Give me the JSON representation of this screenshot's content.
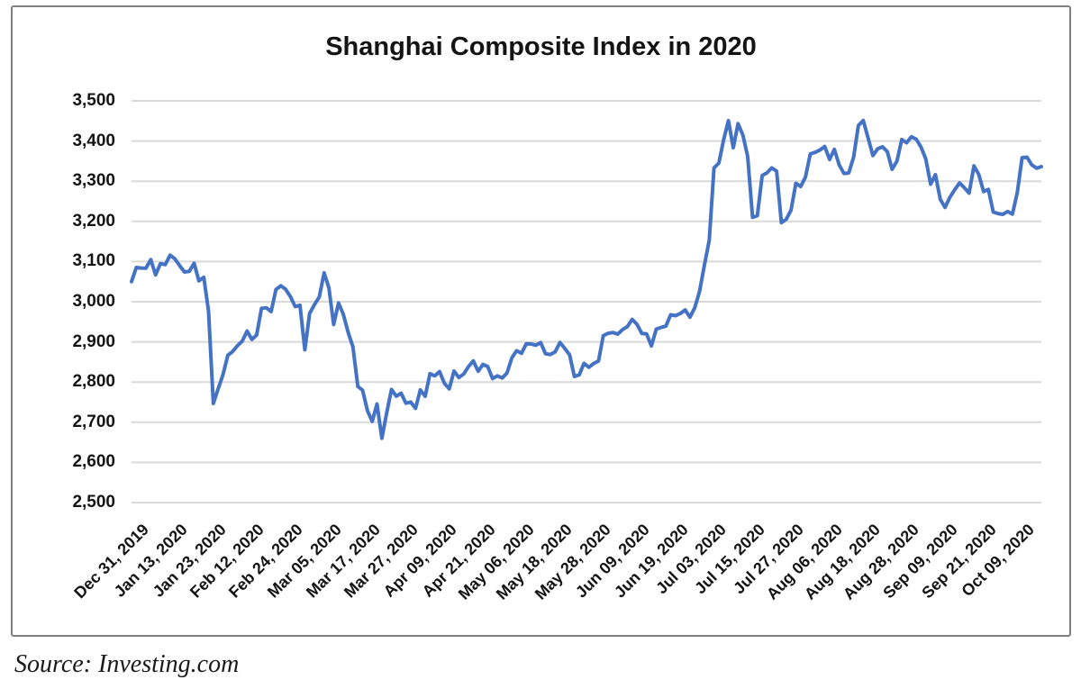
{
  "source_note": "Source: Investing.com",
  "chart_data": {
    "type": "line",
    "title": "Shanghai Composite Index in 2020",
    "xlabel": "",
    "ylabel": "",
    "ylim": [
      2500,
      3500
    ],
    "y_tick_step": 100,
    "y_tick_labels": [
      "3,500",
      "3,400",
      "3,300",
      "3,200",
      "3,100",
      "3,000",
      "2,900",
      "2,800",
      "2,700",
      "2,600",
      "2,500"
    ],
    "y_tick_values": [
      3500,
      3400,
      3300,
      3200,
      3100,
      3000,
      2900,
      2800,
      2700,
      2600,
      2500
    ],
    "x_tick_labels": [
      "Dec 31, 2019",
      "Jan 13, 2020",
      "Jan 23, 2020",
      "Feb 12, 2020",
      "Feb 24, 2020",
      "Mar 05, 2020",
      "Mar 17, 2020",
      "Mar 27, 2020",
      "Apr 09, 2020",
      "Apr 21, 2020",
      "May 06, 2020",
      "May 18, 2020",
      "May 28, 2020",
      "Jun 09, 2020",
      "Jun 19, 2020",
      "Jul 03, 2020",
      "Jul 15, 2020",
      "Jul 27, 2020",
      "Aug 06, 2020",
      "Aug 18, 2020",
      "Aug 28, 2020",
      "Sep 09, 2020",
      "Sep 21, 2020",
      "Oct 09, 2020"
    ],
    "x_tick_every_n_points": 8,
    "grid": "horizontal",
    "gridline_color": "#d9d9d9",
    "legend_position": "none",
    "series": [
      {
        "name": "Shanghai Composite Index",
        "color": "#4472C4",
        "values": [
          3050.1,
          3085.2,
          3083.8,
          3083.4,
          3104.8,
          3066.9,
          3094.9,
          3092.3,
          3115.6,
          3106.8,
          3090.0,
          3074.1,
          3075.5,
          3095.8,
          3052.1,
          3060.8,
          2976.5,
          2746.6,
          2783.3,
          2818.1,
          2866.5,
          2875.9,
          2890.5,
          2901.7,
          2926.9,
          2906.1,
          2917.0,
          2983.6,
          2985.0,
          2975.4,
          3030.2,
          3039.7,
          3031.2,
          3013.1,
          2987.9,
          2991.3,
          2880.3,
          2970.9,
          2992.9,
          3011.7,
          3071.7,
          3034.5,
          2943.3,
          2996.8,
          2968.5,
          2923.5,
          2887.4,
          2789.3,
          2779.6,
          2728.8,
          2702.1,
          2745.6,
          2660.2,
          2722.4,
          2781.6,
          2764.9,
          2772.2,
          2747.2,
          2750.3,
          2734.5,
          2780.6,
          2764.5,
          2820.8,
          2815.4,
          2825.9,
          2796.6,
          2783.1,
          2827.3,
          2811.2,
          2819.9,
          2838.5,
          2852.6,
          2827.0,
          2844.0,
          2838.5,
          2808.5,
          2815.5,
          2810.0,
          2822.4,
          2860.1,
          2878.1,
          2871.5,
          2895.3,
          2894.8,
          2891.6,
          2898.1,
          2870.3,
          2868.5,
          2875.4,
          2898.6,
          2883.7,
          2867.9,
          2813.8,
          2818.0,
          2846.6,
          2836.8,
          2846.2,
          2852.4,
          2915.4,
          2921.4,
          2923.4,
          2919.3,
          2930.8,
          2937.8,
          2956.1,
          2943.8,
          2920.9,
          2919.7,
          2890.0,
          2931.8,
          2935.9,
          2939.3,
          2967.6,
          2965.3,
          2970.6,
          2979.6,
          2961.5,
          2984.7,
          3026.0,
          3090.6,
          3152.8,
          3332.9,
          3345.3,
          3403.4,
          3450.6,
          3383.3,
          3443.3,
          3414.6,
          3361.3,
          3210.1,
          3214.1,
          3314.2,
          3320.9,
          3333.2,
          3325.1,
          3196.8,
          3205.2,
          3228.0,
          3294.6,
          3286.8,
          3310.0,
          3368.0,
          3371.7,
          3377.6,
          3386.5,
          3354.0,
          3379.3,
          3340.3,
          3319.3,
          3320.7,
          3360.1,
          3438.8,
          3451.1,
          3408.1,
          3363.9,
          3380.7,
          3385.6,
          3373.6,
          3329.7,
          3350.1,
          3403.8,
          3395.7,
          3410.6,
          3404.8,
          3385.0,
          3355.4,
          3292.6,
          3316.4,
          3254.6,
          3234.8,
          3260.4,
          3278.8,
          3295.7,
          3283.9,
          3270.4,
          3338.1,
          3316.9,
          3274.3,
          3279.7,
          3223.2,
          3219.4,
          3217.5,
          3224.4,
          3218.1,
          3272.1,
          3358.5,
          3359.8,
          3340.8,
          3332.2,
          3336.4
        ]
      }
    ]
  }
}
